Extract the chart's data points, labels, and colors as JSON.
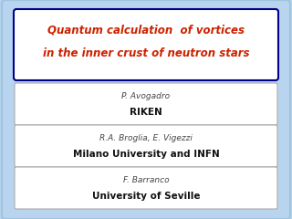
{
  "title_line1": "Quantum calculation  of vortices",
  "title_line2": "in the inner crust of neutron stars",
  "title_color": "#cc2200",
  "title_box_edge": "#00008b",
  "background_color": "#b8d4ee",
  "box_bg": "#ffffff",
  "authors": [
    {
      "name": "P. Avogadro",
      "institution": "RIKEN"
    },
    {
      "name": "R.A. Broglia, E. Vigezzi",
      "institution": "Milano University and INFN"
    },
    {
      "name": "F. Barranco",
      "institution": "University of Seville"
    }
  ],
  "name_fontsize": 6.5,
  "institution_fontsize": 7.5,
  "title_fontsize": 8.5,
  "outer_edge_color": "#9fc4e0",
  "author_box_edge": "#aaaaaa"
}
